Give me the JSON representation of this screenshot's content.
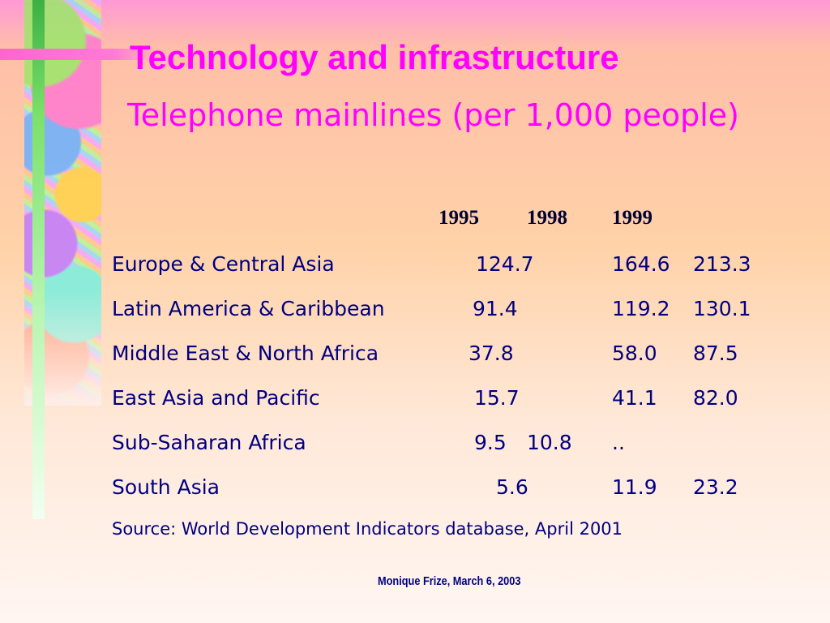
{
  "slide": {
    "title": "Technology and infrastructure",
    "subtitle": "Telephone mainlines (per 1,000 people)",
    "source": "Source: World Development Indicators database, April 2001",
    "footer": "Monique Frize, March 6, 2003"
  },
  "table": {
    "year_headers": [
      "1995",
      "1998",
      "1999"
    ],
    "rows": [
      {
        "region": "Europe & Central Asia",
        "values": [
          "124.7",
          "164.6",
          "213.3"
        ]
      },
      {
        "region": "Latin America & Caribbean",
        "values": [
          "91.4",
          "119.2",
          "130.1"
        ]
      },
      {
        "region": "Middle East & North Africa",
        "values": [
          "37.8",
          "58.0",
          "87.5"
        ]
      },
      {
        "region": "East Asia and Pacific",
        "values": [
          "15.7",
          "41.1",
          "82.0"
        ]
      },
      {
        "region": "Sub-Saharan Africa",
        "values": [
          "9.5",
          "10.8",
          ".."
        ]
      },
      {
        "region": "South Asia",
        "values": [
          "5.6",
          "11.9",
          "23.2"
        ]
      }
    ]
  },
  "colors": {
    "title": "#ff00ff",
    "body_text": "#000080",
    "accent_green": "#3cb043",
    "accent_pink": "#ff66cc"
  }
}
